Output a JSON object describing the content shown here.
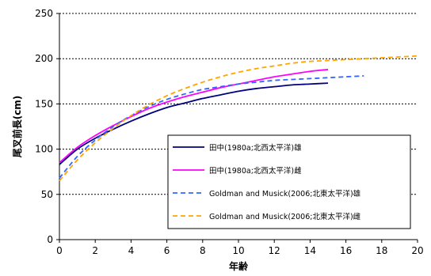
{
  "chart_data": {
    "type": "line",
    "title": "",
    "xlabel": "年齢",
    "ylabel": "尾叉前長(cm)",
    "xlim": [
      0,
      20
    ],
    "ylim": [
      0,
      250
    ],
    "x_ticks": [
      "0",
      "2",
      "4",
      "6",
      "8",
      "10",
      "12",
      "14",
      "16",
      "18",
      "20"
    ],
    "y_ticks": [
      "0",
      "50",
      "100",
      "150",
      "200",
      "250"
    ],
    "grid": "horizontal dotted",
    "legend_position": "inside-bottom-right",
    "series": [
      {
        "name": "田中(1980a;北西太平洋)雄",
        "color": "#000080",
        "dash": "solid",
        "x": [
          0,
          1,
          2,
          3,
          4,
          5,
          6,
          7,
          8,
          9,
          10,
          11,
          12,
          13,
          14,
          15
        ],
        "y": [
          83,
          100,
          112,
          122,
          131,
          139,
          146,
          151,
          156,
          160,
          164,
          167,
          169,
          171,
          172,
          173
        ]
      },
      {
        "name": "田中(1980a;北西太平洋)雌",
        "color": "#ff00ff",
        "dash": "solid",
        "x": [
          0,
          1,
          2,
          3,
          4,
          5,
          6,
          7,
          8,
          9,
          10,
          11,
          12,
          13,
          14,
          15
        ],
        "y": [
          85,
          102,
          115,
          126,
          136,
          145,
          152,
          158,
          163,
          168,
          172,
          176,
          180,
          183,
          186,
          188
        ]
      },
      {
        "name": "Goldman and Musick(2006;北東太平洋)雄",
        "color": "#3366ff",
        "dash": "dashed",
        "x": [
          0,
          1,
          2,
          3,
          4,
          5,
          6,
          7,
          8,
          9,
          10,
          11,
          12,
          13,
          14,
          15,
          16,
          17
        ],
        "y": [
          68,
          92,
          110,
          125,
          137,
          147,
          155,
          161,
          166,
          169,
          172,
          174,
          176,
          177,
          178,
          179,
          180,
          181
        ]
      },
      {
        "name": "Goldman and Musick(2006;北東太平洋)雌",
        "color": "#ffa500",
        "dash": "dashed",
        "x": [
          0,
          1,
          2,
          3,
          4,
          5,
          6,
          7,
          8,
          9,
          10,
          11,
          12,
          13,
          14,
          15,
          16,
          17,
          18,
          19,
          20
        ],
        "y": [
          65,
          88,
          107,
          123,
          137,
          149,
          159,
          167,
          174,
          180,
          185,
          189,
          192,
          195,
          197,
          198,
          199,
          200,
          201,
          202,
          203
        ]
      }
    ]
  }
}
